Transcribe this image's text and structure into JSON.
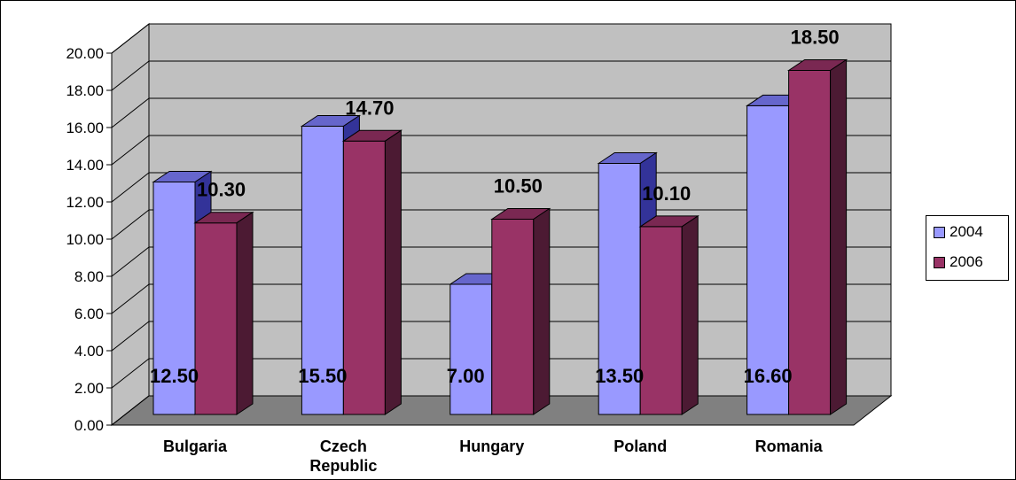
{
  "chart_data": {
    "type": "bar",
    "categories": [
      "Bulgaria",
      "Czech Republic",
      "Hungary",
      "Poland",
      "Romania"
    ],
    "series": [
      {
        "name": "2004",
        "values": [
          12.5,
          15.5,
          7.0,
          13.5,
          16.6
        ],
        "labels": [
          "12.50",
          "15.50",
          "7.00",
          "13.50",
          "16.60"
        ]
      },
      {
        "name": "2006",
        "values": [
          10.3,
          14.7,
          10.5,
          10.1,
          18.5
        ],
        "labels": [
          "10.30",
          "14.70",
          "10.50",
          "10.10",
          "18.50"
        ]
      }
    ],
    "yticks": [
      "0.00",
      "2.00",
      "4.00",
      "6.00",
      "8.00",
      "10.00",
      "12.00",
      "14.00",
      "16.00",
      "18.00",
      "20.00"
    ],
    "ylim": [
      0,
      20
    ],
    "grid": true,
    "legend_position": "right",
    "style": "3d-clustered-column",
    "colors": {
      "s2004": "#9999ff",
      "s2006": "#993366",
      "wall": "#c0c0c0",
      "floor": "#808080"
    }
  }
}
